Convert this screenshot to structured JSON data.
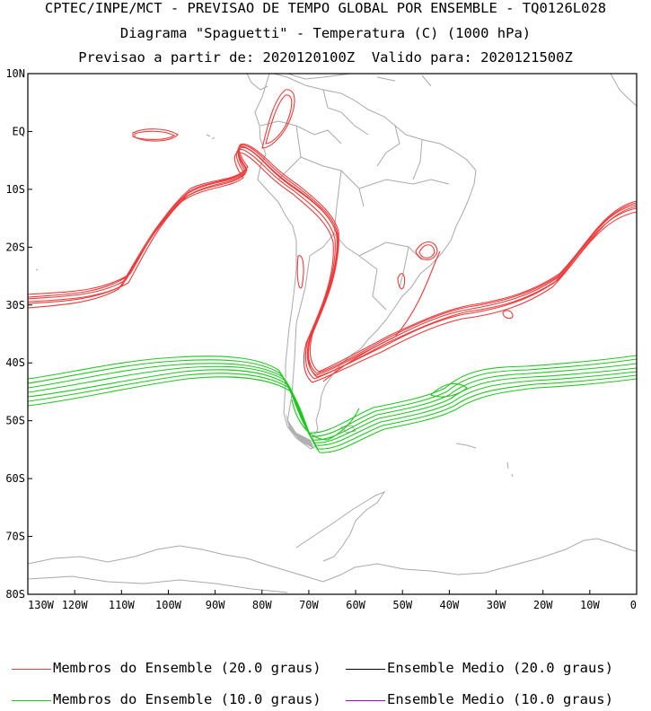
{
  "titles": {
    "line1": "CPTEC/INPE/MCT - PREVISAO DE TEMPO GLOBAL POR ENSEMBLE - TQ0126L028",
    "line2": "Diagrama \"Spaguetti\" - Temperatura (C) (1000 hPa)",
    "line3": "Previsao a partir de: 2020120100Z  Valido para: 2020121500Z"
  },
  "map": {
    "lat_labels": [
      "10N",
      "EQ",
      "10S",
      "20S",
      "30S",
      "40S",
      "50S",
      "60S",
      "70S",
      "80S"
    ],
    "lat_values": [
      10,
      0,
      -10,
      -20,
      -30,
      -40,
      -50,
      -60,
      -70,
      -80
    ],
    "lon_labels": [
      "130W",
      "120W",
      "110W",
      "100W",
      "90W",
      "80W",
      "70W",
      "60W",
      "50W",
      "40W",
      "30W",
      "20W",
      "10W",
      "0"
    ],
    "lon_values": [
      -130,
      -120,
      -110,
      -100,
      -90,
      -80,
      -70,
      -60,
      -50,
      -40,
      -30,
      -20,
      -10,
      0
    ],
    "lon_range": [
      -130,
      0
    ],
    "lat_range": [
      -80,
      10
    ],
    "colors": {
      "coast": "#a9a9a9",
      "member20": "#ee3b3b",
      "member10": "#1ec81e",
      "mean20": "#000000",
      "mean10": "#a000c8"
    }
  },
  "legend": {
    "member20_label": "Membros do Ensemble (20.0 graus)",
    "mean20_label": "Ensemble Medio (20.0 graus)",
    "member10_label": "Membros do Ensemble (10.0 graus)",
    "mean10_label": "Ensemble Medio (10.0 graus)"
  }
}
